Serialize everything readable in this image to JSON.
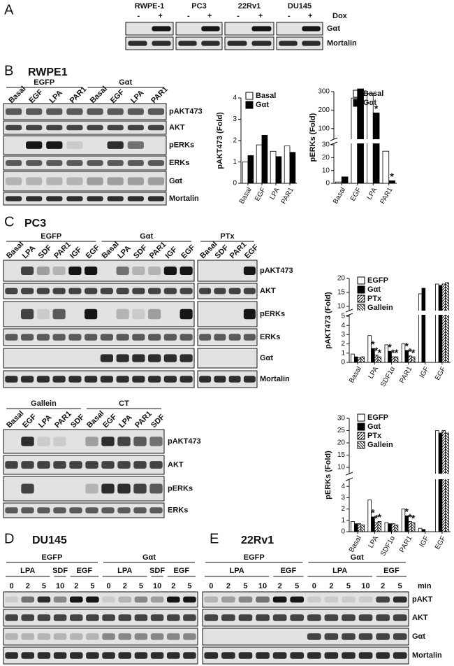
{
  "panel_a": {
    "label": "A",
    "cell_lines": [
      "RWPE-1",
      "PC3",
      "22Rv1",
      "DU145"
    ],
    "dox_states": [
      "-",
      "+"
    ],
    "treatment": "Dox",
    "rows": [
      "Gαt",
      "Mortalin"
    ]
  },
  "panel_b": {
    "label": "B",
    "title": "RWPE1",
    "groups": [
      "EGFP",
      "Gαt"
    ],
    "lanes": [
      "Basal",
      "EGF",
      "LPA",
      "PAR1"
    ],
    "rows": [
      "pAKT473",
      "AKT",
      "pERKs",
      "ERKs",
      "Gαt",
      "Mortalin"
    ]
  },
  "panel_c": {
    "label": "C",
    "title": "PC3",
    "blots": [
      {
        "groups": [
          {
            "name": "EGFP",
            "lanes": [
              "Basal",
              "LPA",
              "SDF",
              "PAR1",
              "IGF",
              "EGF"
            ]
          },
          {
            "name": "Gαt",
            "lanes": [
              "Basal",
              "LPA",
              "SDF",
              "PAR1",
              "IGF",
              "EGF"
            ]
          },
          {
            "name": "PTx",
            "lanes": [
              "Basal",
              "SDF",
              "PAR1",
              "EGF"
            ]
          }
        ],
        "rows": [
          "pAKT473",
          "AKT",
          "pERKs",
          "ERKs",
          "Gαt",
          "Mortalin"
        ]
      },
      {
        "groups": [
          {
            "name": "Gallein",
            "lanes": [
              "Basal",
              "EGF",
              "LPA",
              "PAR1",
              "SDF"
            ]
          },
          {
            "name": "CT",
            "lanes": [
              "Basal",
              "EGF",
              "LPA",
              "PAR1",
              "SDF"
            ]
          }
        ],
        "rows": [
          "pAKT473",
          "AKT",
          "pERKs",
          "ERKs"
        ]
      }
    ]
  },
  "panel_d": {
    "label": "D",
    "title": "DU145",
    "groups": [
      {
        "name": "EGFP",
        "treatments": [
          {
            "name": "LPA",
            "times": [
              0,
              2,
              5
            ]
          },
          {
            "name": "SDF",
            "times": [
              10
            ]
          },
          {
            "name": "EGF",
            "times": [
              2,
              5
            ]
          }
        ]
      },
      {
        "name": "Gαt",
        "treatments": [
          {
            "name": "LPA",
            "times": [
              0,
              2,
              5
            ]
          },
          {
            "name": "SDF",
            "times": [
              10
            ]
          },
          {
            "name": "EGF",
            "times": [
              2,
              5
            ]
          }
        ]
      }
    ]
  },
  "panel_e": {
    "label": "E",
    "title": "22Rv1",
    "unit": "min",
    "groups": [
      {
        "name": "EGFP",
        "treatments": [
          {
            "name": "LPA",
            "times": [
              0,
              2,
              5,
              10
            ]
          },
          {
            "name": "EGF",
            "times": [
              2,
              5
            ]
          }
        ]
      },
      {
        "name": "Gαt",
        "treatments": [
          {
            "name": "LPA",
            "times": [
              0,
              2,
              5,
              10
            ]
          },
          {
            "name": "EGF",
            "times": [
              2,
              5
            ]
          }
        ]
      }
    ],
    "rows": [
      "pAKT",
      "AKT",
      "Gαt",
      "Mortalin"
    ]
  },
  "chart_data": [
    {
      "type": "bar",
      "y_label": "pAKT473 (Fold)",
      "categories": [
        "Basal",
        "EGF",
        "LPA",
        "PAR1"
      ],
      "ylim": [
        0,
        4
      ],
      "yticks": [
        0,
        1,
        2,
        3,
        4
      ],
      "series": [
        {
          "name": "Basal",
          "color": "#ffffff",
          "values": [
            1.0,
            1.8,
            1.5,
            1.75
          ]
        },
        {
          "name": "Gαt",
          "color": "#000000",
          "values": [
            1.3,
            2.25,
            1.25,
            1.45
          ]
        }
      ]
    },
    {
      "type": "bar",
      "y_label": "pERKs (Fold)",
      "categories": [
        "Basal",
        "EGF",
        "LPA",
        "PAR1"
      ],
      "ylim": [
        0,
        300
      ],
      "y_break": [
        30,
        50
      ],
      "yticks": [
        0,
        10,
        20,
        30,
        100,
        200,
        300
      ],
      "series": [
        {
          "name": "Basal",
          "color": "#ffffff",
          "values": [
            1,
            265,
            290,
            25
          ]
        },
        {
          "name": "Gαt",
          "color": "#000000",
          "values": [
            5,
            315,
            185,
            2
          ],
          "significance": [
            null,
            null,
            "*",
            "*"
          ]
        }
      ]
    },
    {
      "type": "bar",
      "y_label": "pAKT473 (Fold)",
      "categories": [
        "Basal",
        "LPA",
        "SDF1α",
        "PAR1",
        "IGF",
        "EGF"
      ],
      "ylim": [
        0,
        20
      ],
      "y_break": [
        5,
        9
      ],
      "yticks": [
        0,
        1,
        2,
        3,
        4,
        5,
        10,
        15,
        20
      ],
      "series": [
        {
          "name": "EGFP",
          "color": "#ffffff",
          "values": [
            0.9,
            2.9,
            1.9,
            2.0,
            14.5,
            18
          ]
        },
        {
          "name": "Gαt",
          "color": "#000000",
          "values": [
            0.6,
            1.5,
            1.2,
            1.3,
            16.5,
            17.5
          ],
          "significance": [
            null,
            "*",
            "*",
            "*",
            null,
            null
          ]
        },
        {
          "name": "PTx",
          "color": "#ffffff",
          "hatch": "/",
          "values": [
            0.5,
            0.8,
            0.6,
            0.7,
            null,
            18
          ],
          "significance": [
            null,
            "*",
            "*",
            "*",
            null,
            null
          ]
        },
        {
          "name": "Gallein",
          "color": "#ffffff",
          "hatch": "\\",
          "values": [
            0.6,
            0.6,
            0.6,
            0.6,
            null,
            18.5
          ],
          "significance": [
            null,
            "*",
            "*",
            "*",
            null,
            null
          ]
        }
      ]
    },
    {
      "type": "bar",
      "y_label": "pERKs (Fold)",
      "categories": [
        "Basal",
        "LPA",
        "SDF1α",
        "PAR1",
        "IGF",
        "EGF"
      ],
      "ylim": [
        0,
        30
      ],
      "y_break": [
        4.5,
        8
      ],
      "yticks": [
        0,
        1,
        2,
        3,
        4,
        10,
        15,
        20,
        25,
        30
      ],
      "series": [
        {
          "name": "EGFP",
          "color": "#ffffff",
          "values": [
            0.9,
            2.8,
            0.8,
            2.0,
            0.3,
            25
          ]
        },
        {
          "name": "Gαt",
          "color": "#000000",
          "values": [
            0.7,
            1.3,
            0.7,
            1.4,
            0.2,
            24
          ],
          "significance": [
            null,
            "*",
            null,
            "*",
            null,
            null
          ]
        },
        {
          "name": "PTx",
          "color": "#ffffff",
          "hatch": "/",
          "values": [
            0.7,
            0.8,
            0.7,
            0.9,
            null,
            25
          ],
          "significance": [
            null,
            "*",
            null,
            "*",
            null,
            null
          ]
        },
        {
          "name": "Gallein",
          "color": "#ffffff",
          "hatch": "\\",
          "values": [
            0.6,
            0.9,
            0.6,
            0.8,
            null,
            24
          ],
          "significance": [
            null,
            "*",
            null,
            "*",
            null,
            null
          ]
        }
      ]
    }
  ]
}
